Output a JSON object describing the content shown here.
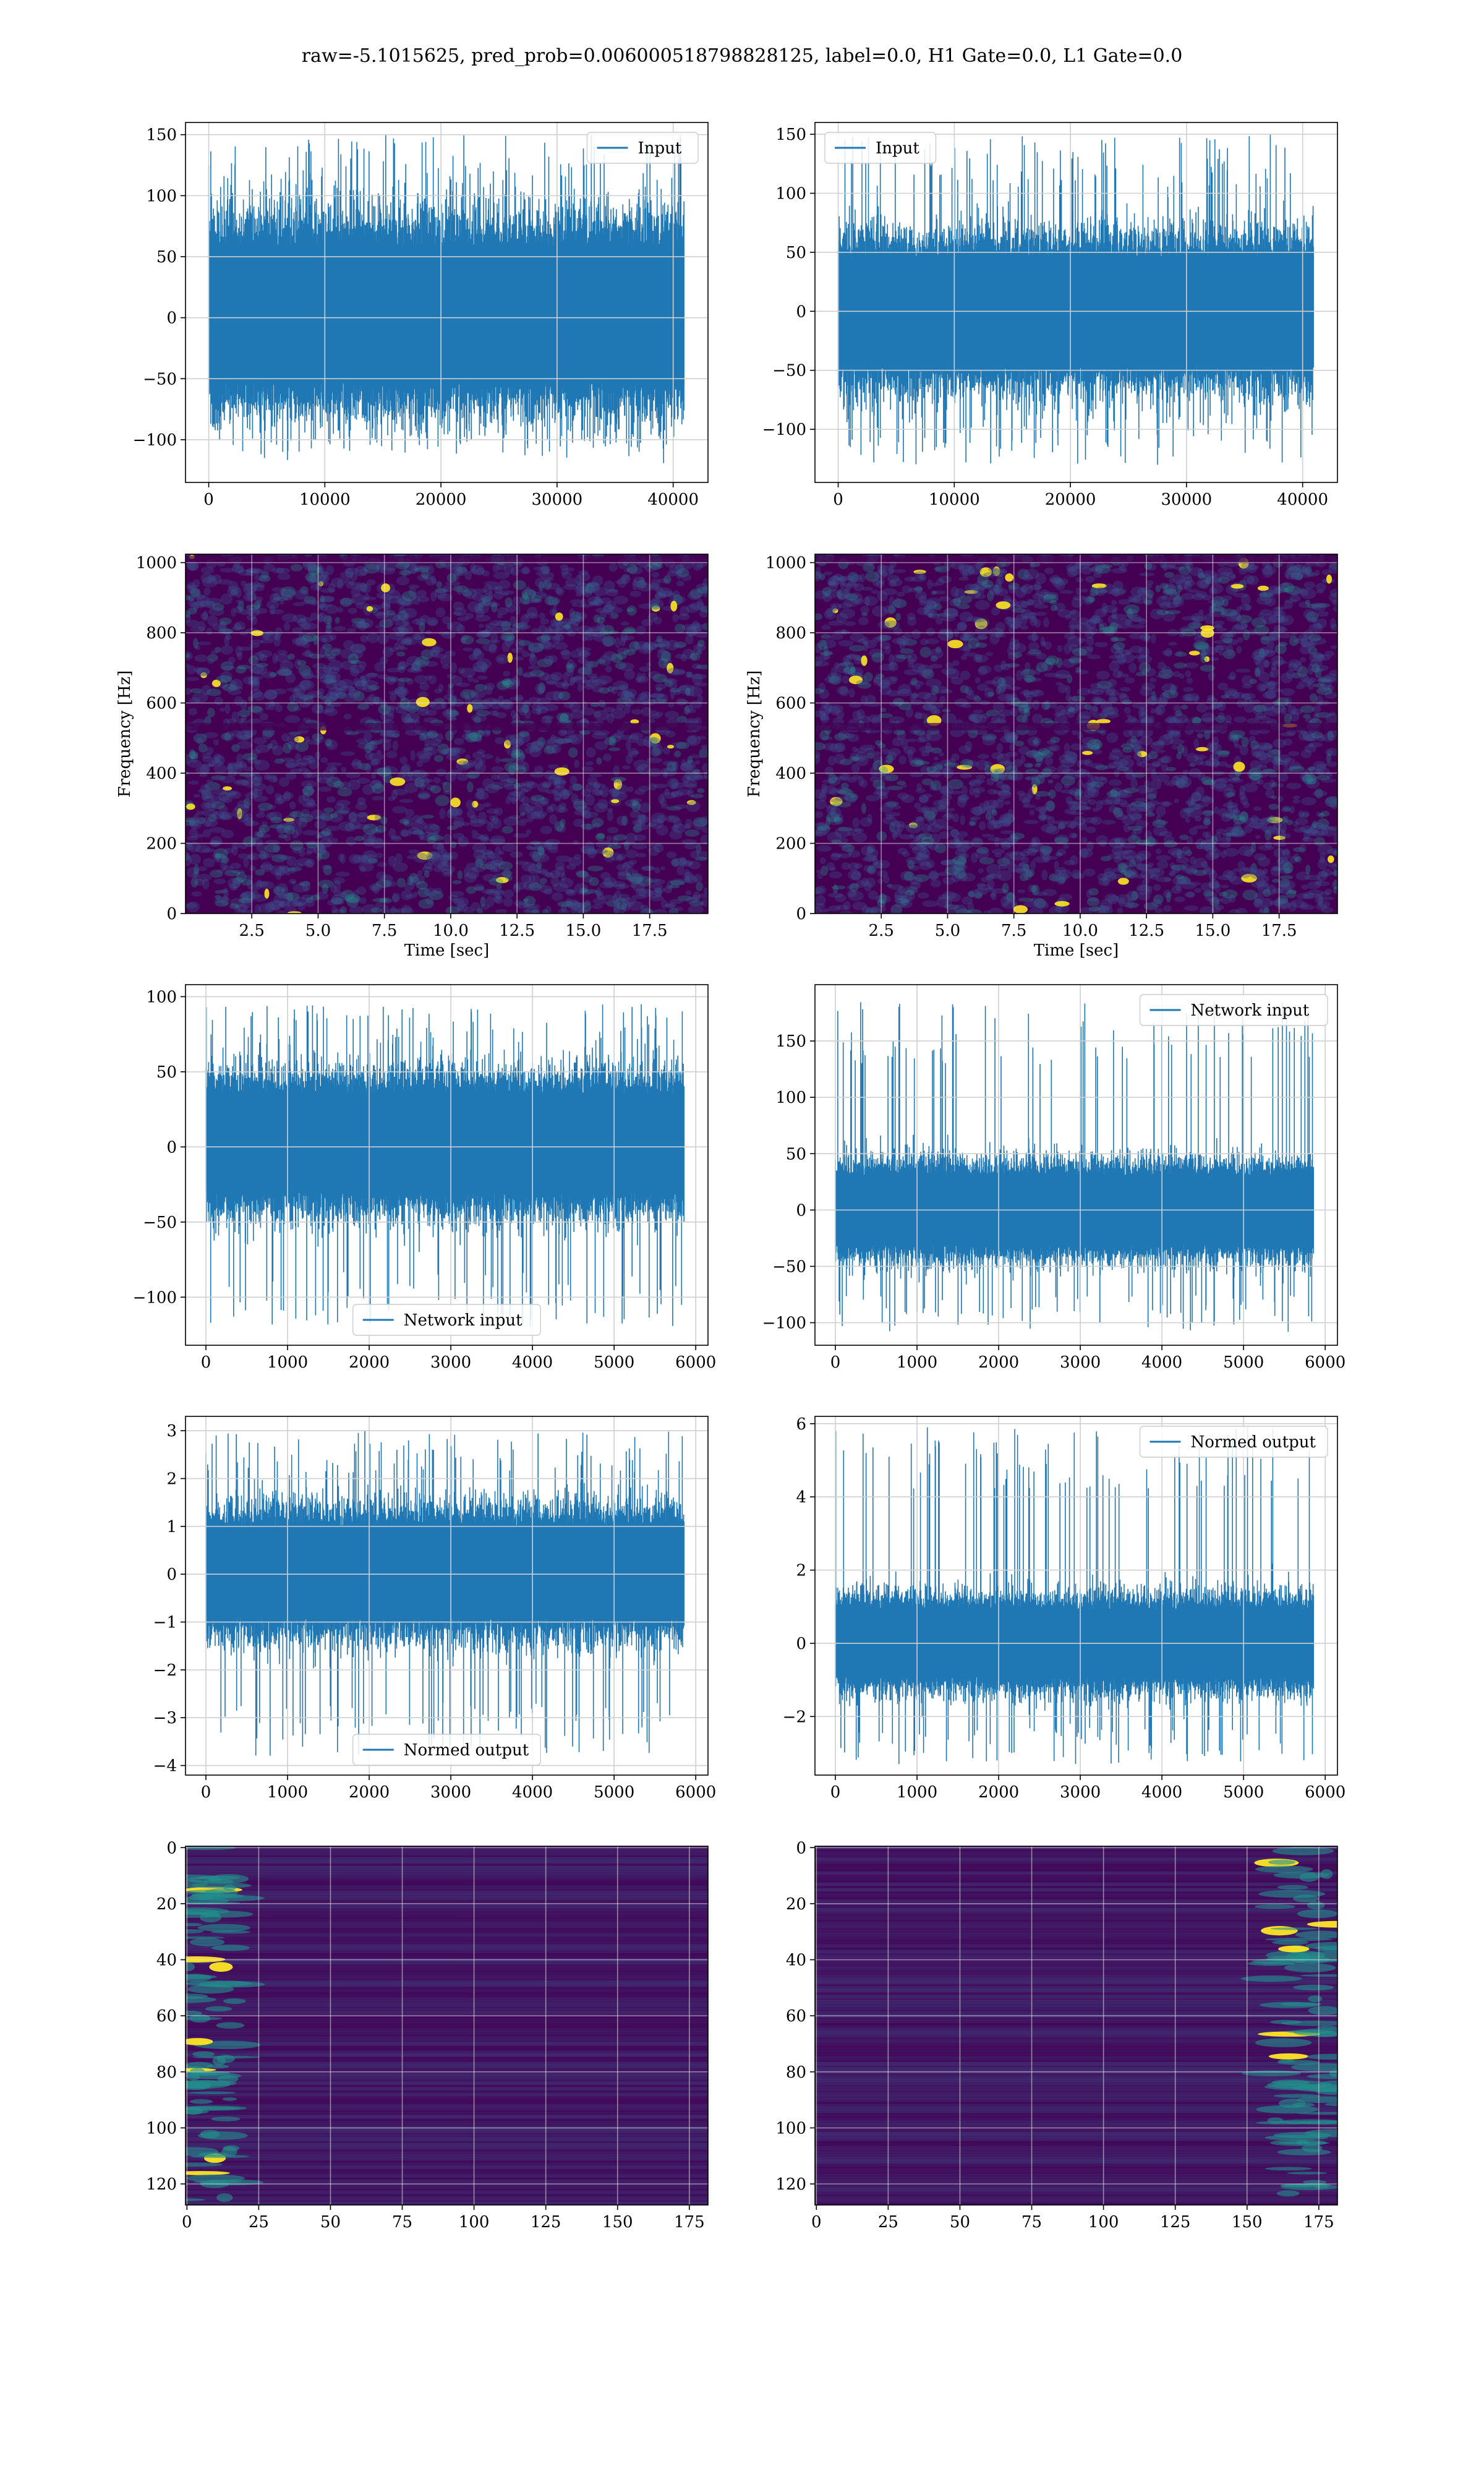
{
  "figure": {
    "suptitle": "raw=-5.1015625, pred_prob=0.006000518798828125, label=0.0, H1 Gate=0.0, L1 Gate=0.0"
  },
  "colors": {
    "line": "#1f77b4",
    "grid": "#cfcfcf",
    "viridis_dark": "#440154",
    "viridis_mid": "#21918c",
    "viridis_bright": "#fde725"
  },
  "chart_data": [
    {
      "id": "h1-input",
      "type": "line",
      "series": [
        {
          "name": "Input",
          "n_points": 40960,
          "envelope": [
            -70,
            75
          ],
          "peaks": [
            -115,
            150
          ]
        }
      ],
      "xlim": [
        -2000,
        43000
      ],
      "ylim": [
        -135,
        160
      ],
      "xticks": [
        0,
        10000,
        20000,
        30000,
        40000
      ],
      "yticks": [
        -100,
        -50,
        0,
        50,
        100,
        150
      ],
      "xlabel": "",
      "ylabel": "",
      "grid": true,
      "legend": "top-right"
    },
    {
      "id": "l1-input",
      "type": "line",
      "series": [
        {
          "name": "Input",
          "n_points": 40960,
          "envelope": [
            -60,
            60
          ],
          "peaks": [
            -130,
            150
          ]
        }
      ],
      "xlim": [
        -2000,
        43000
      ],
      "ylim": [
        -145,
        160
      ],
      "xticks": [
        0,
        10000,
        20000,
        30000,
        40000
      ],
      "yticks": [
        -100,
        -50,
        0,
        50,
        100,
        150
      ],
      "xlabel": "",
      "ylabel": "",
      "grid": true,
      "legend": "top-left"
    },
    {
      "id": "h1-spectrogram",
      "type": "heatmap",
      "xlim": [
        0,
        19.7
      ],
      "ylim": [
        0,
        1024
      ],
      "xticks": [
        2.5,
        5.0,
        7.5,
        10.0,
        12.5,
        15.0,
        17.5
      ],
      "yticks": [
        0,
        200,
        400,
        600,
        800,
        1000
      ],
      "xtick_labels": [
        "2.5",
        "5.0",
        "7.5",
        "10.0",
        "12.5",
        "15.0",
        "17.5"
      ],
      "xlabel": "Time [sec]",
      "ylabel": "Frequency [Hz]",
      "grid": true,
      "colormap": "viridis"
    },
    {
      "id": "l1-spectrogram",
      "type": "heatmap",
      "xlim": [
        0,
        19.7
      ],
      "ylim": [
        0,
        1024
      ],
      "xticks": [
        2.5,
        5.0,
        7.5,
        10.0,
        12.5,
        15.0,
        17.5
      ],
      "yticks": [
        0,
        200,
        400,
        600,
        800,
        1000
      ],
      "xtick_labels": [
        "2.5",
        "5.0",
        "7.5",
        "10.0",
        "12.5",
        "15.0",
        "17.5"
      ],
      "xlabel": "Time [sec]",
      "ylabel": "Frequency [Hz]",
      "grid": true,
      "colormap": "viridis"
    },
    {
      "id": "h1-network-input",
      "type": "line",
      "series": [
        {
          "name": "Network input",
          "n_points": 5860,
          "envelope": [
            -40,
            45
          ],
          "peaks": [
            -120,
            95
          ]
        }
      ],
      "xlim": [
        -250,
        6150
      ],
      "ylim": [
        -132,
        108
      ],
      "xticks": [
        0,
        1000,
        2000,
        3000,
        4000,
        5000,
        6000
      ],
      "yticks": [
        -100,
        -50,
        0,
        50,
        100
      ],
      "xlabel": "",
      "ylabel": "",
      "grid": true,
      "legend": "bottom-center"
    },
    {
      "id": "l1-network-input",
      "type": "line",
      "series": [
        {
          "name": "Network input",
          "n_points": 5860,
          "envelope": [
            -40,
            40
          ],
          "peaks": [
            -108,
            185
          ]
        }
      ],
      "xlim": [
        -250,
        6150
      ],
      "ylim": [
        -120,
        200
      ],
      "xticks": [
        0,
        1000,
        2000,
        3000,
        4000,
        5000,
        6000
      ],
      "yticks": [
        -100,
        -50,
        0,
        50,
        100,
        150
      ],
      "xlabel": "",
      "ylabel": "",
      "grid": true,
      "legend": "top-right"
    },
    {
      "id": "h1-normed-output",
      "type": "line",
      "series": [
        {
          "name": "Normed output",
          "n_points": 5860,
          "envelope": [
            -1.2,
            1.3
          ],
          "peaks": [
            -3.8,
            3.0
          ]
        }
      ],
      "xlim": [
        -250,
        6150
      ],
      "ylim": [
        -4.2,
        3.3
      ],
      "xticks": [
        0,
        1000,
        2000,
        3000,
        4000,
        5000,
        6000
      ],
      "yticks": [
        -4,
        -3,
        -2,
        -1,
        0,
        1,
        2,
        3
      ],
      "xlabel": "",
      "ylabel": "",
      "grid": true,
      "legend": "bottom-center"
    },
    {
      "id": "l1-normed-output",
      "type": "line",
      "series": [
        {
          "name": "Normed output",
          "n_points": 5860,
          "envelope": [
            -1.2,
            1.2
          ],
          "peaks": [
            -3.3,
            5.9
          ]
        }
      ],
      "xlim": [
        -250,
        6150
      ],
      "ylim": [
        -3.6,
        6.2
      ],
      "xticks": [
        0,
        1000,
        2000,
        3000,
        4000,
        5000,
        6000
      ],
      "yticks": [
        -2,
        0,
        2,
        4,
        6
      ],
      "xlabel": "",
      "ylabel": "",
      "grid": true,
      "legend": "top-right"
    },
    {
      "id": "h1-feature-map",
      "type": "heatmap",
      "xlim": [
        -0.5,
        181.5
      ],
      "ylim": [
        127.5,
        -0.5
      ],
      "xticks": [
        0,
        25,
        50,
        75,
        100,
        125,
        150,
        175
      ],
      "yticks": [
        0,
        20,
        40,
        60,
        80,
        100,
        120
      ],
      "xlabel": "",
      "ylabel": "",
      "grid": true,
      "colormap": "viridis",
      "hot_region": "left"
    },
    {
      "id": "l1-feature-map",
      "type": "heatmap",
      "xlim": [
        -0.5,
        181.5
      ],
      "ylim": [
        127.5,
        -0.5
      ],
      "xticks": [
        0,
        25,
        50,
        75,
        100,
        125,
        150,
        175
      ],
      "yticks": [
        0,
        20,
        40,
        60,
        80,
        100,
        120
      ],
      "xlabel": "",
      "ylabel": "",
      "grid": true,
      "colormap": "viridis",
      "hot_region": "right"
    }
  ]
}
